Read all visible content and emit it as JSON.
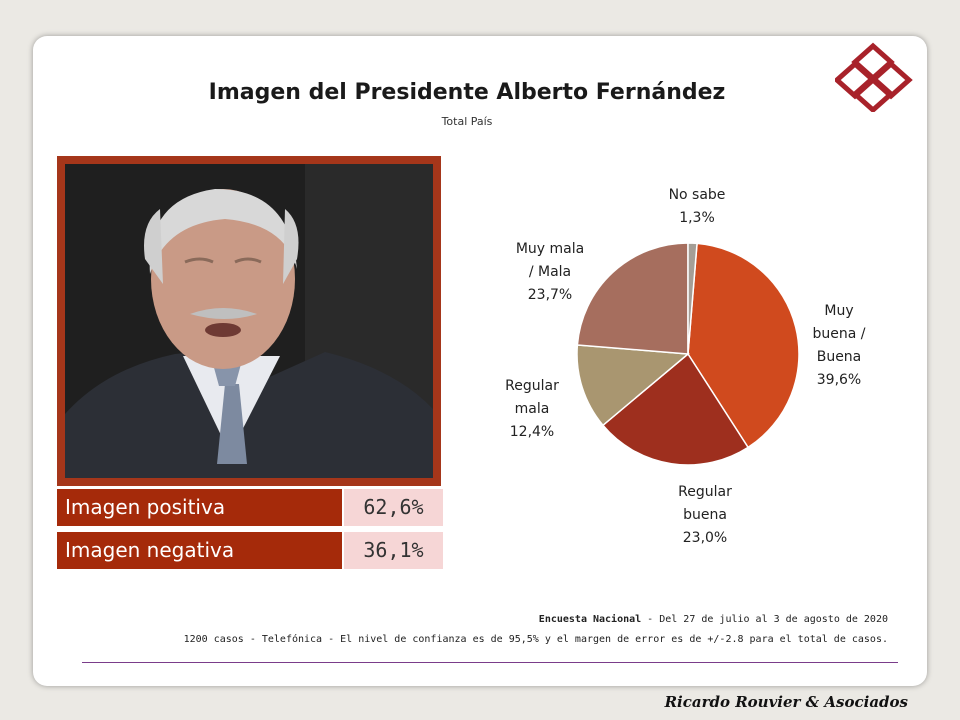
{
  "title": "Imagen del Presidente Alberto Fernández",
  "subtitle": "Total País",
  "logo_icon": "interlocked-diamonds-logo",
  "photo_icon": "president-portrait-photo",
  "stats": [
    {
      "label": "Imagen positiva",
      "value": "62,6%"
    },
    {
      "label": "Imagen negativa",
      "value": "36,1%"
    }
  ],
  "chart_data": {
    "type": "pie",
    "slices": [
      {
        "label_lines": [
          "Muy",
          "buena /",
          "Buena"
        ],
        "value": 39.6,
        "value_text": "39,6%",
        "color": "#d04a1e"
      },
      {
        "label_lines": [
          "Regular",
          "buena"
        ],
        "value": 23.0,
        "value_text": "23,0%",
        "color": "#9e2f1e"
      },
      {
        "label_lines": [
          "Regular",
          "mala"
        ],
        "value": 12.4,
        "value_text": "12,4%",
        "color": "#a99670"
      },
      {
        "label_lines": [
          "Muy mala",
          "/ Mala"
        ],
        "value": 23.7,
        "value_text": "23,7%",
        "color": "#a66e5e"
      },
      {
        "label_lines": [
          "No sabe"
        ],
        "value": 1.3,
        "value_text": "1,3%",
        "color": "#a59e96"
      }
    ]
  },
  "footer": {
    "survey_title": "Encuesta Nacional",
    "survey_dates": " - Del 27 de julio al 3 de agosto de 2020",
    "survey_details": "1200 casos - Telefónica  - El nivel de confianza es de 95,5% y el margen de error es de +/-2.8 para el total de casos."
  },
  "brand": "Ricardo Rouvier & Asociados",
  "colors": {
    "accent": "#a52a0a",
    "value_bg": "#f6d6d6",
    "rule": "#7a3c8a"
  }
}
